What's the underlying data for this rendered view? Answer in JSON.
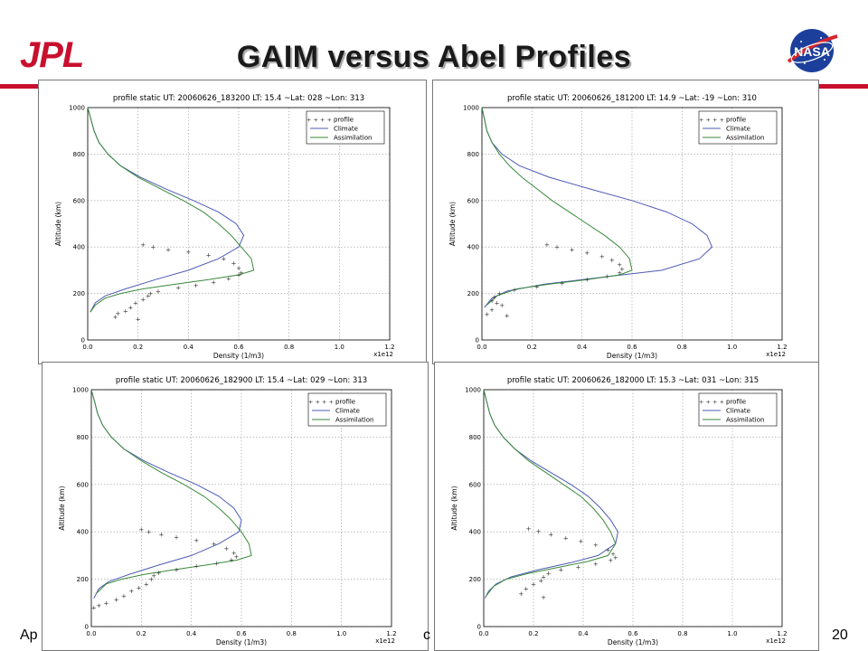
{
  "slide": {
    "title": "GAIM versus Abel Profiles",
    "footer_left": "Ap",
    "footer_mid": "c",
    "slide_number": "20",
    "logo_left_text": "JPL",
    "logo_right_text": "NASA",
    "colors": {
      "brand_red": "#c8102e",
      "climate": "#4d5bb5",
      "assimilation": "#3a8a3a",
      "profile": "#333333"
    }
  },
  "chart_data": [
    {
      "type": "line",
      "title": "profile static UT: 20060626_183200 LT: 15.4 ~Lat: 028 ~Lon: 313",
      "xlabel": "Density (1/m3)",
      "ylabel": "Altitude (km)",
      "x_multiplier": "x1e12",
      "xlim": [
        0,
        1.2
      ],
      "ylim": [
        0,
        1000
      ],
      "xticks": [
        "0.0",
        "0.2",
        "0.4",
        "0.6",
        "0.8",
        "1.0",
        "1.2"
      ],
      "yticks": [
        "0",
        "200",
        "400",
        "600",
        "800",
        "1000"
      ],
      "grid": true,
      "legend_position": "top-right",
      "legend": [
        "profile",
        "Climate",
        "Assimilation"
      ],
      "series": [
        {
          "name": "Climate",
          "kind": "line",
          "x": [
            0.0,
            0.013,
            0.025,
            0.045,
            0.08,
            0.13,
            0.21,
            0.31,
            0.42,
            0.52,
            0.59,
            0.62,
            0.6,
            0.52,
            0.4,
            0.27,
            0.15,
            0.07,
            0.03,
            0.01
          ],
          "y": [
            1000,
            950,
            900,
            850,
            800,
            750,
            700,
            650,
            600,
            550,
            500,
            450,
            400,
            350,
            300,
            260,
            220,
            190,
            160,
            120
          ]
        },
        {
          "name": "Assimilation",
          "kind": "line",
          "x": [
            0.0,
            0.013,
            0.025,
            0.045,
            0.08,
            0.13,
            0.2,
            0.29,
            0.38,
            0.46,
            0.52,
            0.57,
            0.61,
            0.65,
            0.66,
            0.6,
            0.48,
            0.35,
            0.22,
            0.13,
            0.07,
            0.03,
            0.01
          ],
          "y": [
            1000,
            950,
            900,
            850,
            800,
            750,
            700,
            650,
            600,
            550,
            500,
            450,
            400,
            350,
            300,
            280,
            260,
            240,
            220,
            200,
            180,
            150,
            120
          ]
        },
        {
          "name": "profile",
          "kind": "markers",
          "x": [
            0.22,
            0.26,
            0.32,
            0.4,
            0.48,
            0.54,
            0.58,
            0.6,
            0.61,
            0.6,
            0.56,
            0.5,
            0.43,
            0.36,
            0.28,
            0.25,
            0.24,
            0.22,
            0.19,
            0.17,
            0.15,
            0.12,
            0.11,
            0.2
          ],
          "y": [
            410,
            400,
            390,
            380,
            365,
            350,
            330,
            310,
            290,
            280,
            265,
            250,
            235,
            225,
            210,
            200,
            190,
            175,
            160,
            140,
            125,
            115,
            100,
            90
          ]
        }
      ]
    },
    {
      "type": "line",
      "title": "profile static UT: 20060626_181200 LT: 14.9 ~Lat: -19 ~Lon: 310",
      "xlabel": "Density (1/m3)",
      "ylabel": "Altitude (km)",
      "x_multiplier": "x1e12",
      "xlim": [
        0,
        1.2
      ],
      "ylim": [
        0,
        1000
      ],
      "xticks": [
        "0.0",
        "0.2",
        "0.4",
        "0.6",
        "0.8",
        "1.0",
        "1.2"
      ],
      "yticks": [
        "0",
        "200",
        "400",
        "600",
        "800",
        "1000"
      ],
      "grid": true,
      "legend_position": "top-right",
      "legend": [
        "profile",
        "Climate",
        "Assimilation"
      ],
      "series": [
        {
          "name": "Climate",
          "kind": "line",
          "x": [
            0.0,
            0.01,
            0.02,
            0.04,
            0.08,
            0.15,
            0.27,
            0.43,
            0.6,
            0.74,
            0.84,
            0.9,
            0.92,
            0.87,
            0.72,
            0.48,
            0.25,
            0.1,
            0.04,
            0.01
          ],
          "y": [
            1000,
            950,
            900,
            850,
            800,
            750,
            700,
            650,
            600,
            550,
            500,
            450,
            400,
            350,
            300,
            270,
            240,
            210,
            180,
            140
          ]
        },
        {
          "name": "Assimilation",
          "kind": "line",
          "x": [
            0.0,
            0.01,
            0.02,
            0.04,
            0.07,
            0.11,
            0.16,
            0.22,
            0.28,
            0.35,
            0.42,
            0.49,
            0.55,
            0.59,
            0.6,
            0.55,
            0.42,
            0.27,
            0.14,
            0.06,
            0.02
          ],
          "y": [
            1000,
            950,
            900,
            850,
            800,
            750,
            700,
            650,
            600,
            550,
            500,
            450,
            400,
            350,
            300,
            280,
            260,
            240,
            220,
            190,
            150
          ]
        },
        {
          "name": "profile",
          "kind": "markers",
          "x": [
            0.26,
            0.3,
            0.36,
            0.42,
            0.48,
            0.52,
            0.55,
            0.56,
            0.55,
            0.5,
            0.42,
            0.32,
            0.22,
            0.13,
            0.07,
            0.05,
            0.04,
            0.06,
            0.08,
            0.04,
            0.02,
            0.1
          ],
          "y": [
            410,
            400,
            390,
            375,
            360,
            345,
            325,
            305,
            290,
            275,
            260,
            245,
            230,
            215,
            200,
            185,
            170,
            160,
            150,
            130,
            110,
            105
          ]
        }
      ]
    },
    {
      "type": "line",
      "title": "profile static UT: 20060626_182900 LT: 15.4 ~Lat: 029 ~Lon: 313",
      "xlabel": "Density (1/m3)",
      "ylabel": "Altitude (km)",
      "x_multiplier": "x1e12",
      "xlim": [
        0,
        1.2
      ],
      "ylim": [
        0,
        1000
      ],
      "xticks": [
        "0.0",
        "0.2",
        "0.4",
        "0.6",
        "0.8",
        "1.0",
        "1.2"
      ],
      "yticks": [
        "0",
        "200",
        "400",
        "600",
        "800",
        "1000"
      ],
      "grid": true,
      "legend_position": "top-right",
      "legend": [
        "profile",
        "Climate",
        "Assimilation"
      ],
      "series": [
        {
          "name": "Climate",
          "kind": "line",
          "x": [
            0.0,
            0.013,
            0.025,
            0.045,
            0.08,
            0.13,
            0.21,
            0.31,
            0.42,
            0.51,
            0.57,
            0.6,
            0.59,
            0.51,
            0.4,
            0.27,
            0.15,
            0.07,
            0.03,
            0.01
          ],
          "y": [
            1000,
            950,
            900,
            850,
            800,
            750,
            700,
            650,
            600,
            550,
            500,
            450,
            400,
            350,
            300,
            260,
            220,
            190,
            160,
            120
          ]
        },
        {
          "name": "Assimilation",
          "kind": "line",
          "x": [
            0.0,
            0.013,
            0.025,
            0.045,
            0.08,
            0.13,
            0.2,
            0.28,
            0.37,
            0.45,
            0.51,
            0.56,
            0.6,
            0.63,
            0.64,
            0.58,
            0.46,
            0.33,
            0.21,
            0.12,
            0.06,
            0.02
          ],
          "y": [
            1000,
            950,
            900,
            850,
            800,
            750,
            700,
            650,
            600,
            550,
            500,
            450,
            400,
            350,
            300,
            280,
            260,
            240,
            220,
            200,
            180,
            140
          ]
        },
        {
          "name": "profile",
          "kind": "markers",
          "x": [
            0.2,
            0.23,
            0.28,
            0.34,
            0.42,
            0.49,
            0.54,
            0.57,
            0.58,
            0.56,
            0.5,
            0.42,
            0.34,
            0.27,
            0.25,
            0.24,
            0.22,
            0.19,
            0.16,
            0.13,
            0.1,
            0.06,
            0.03,
            0.01
          ],
          "y": [
            410,
            400,
            390,
            378,
            365,
            350,
            330,
            312,
            295,
            282,
            268,
            255,
            240,
            228,
            215,
            200,
            180,
            165,
            150,
            130,
            115,
            100,
            90,
            80
          ]
        }
      ]
    },
    {
      "type": "line",
      "title": "profile static UT: 20060626_182000 LT: 15.3 ~Lat: 031 ~Lon: 315",
      "xlabel": "Density (1/m3)",
      "ylabel": "Altitude (km)",
      "x_multiplier": "x1e12",
      "xlim": [
        0,
        1.2
      ],
      "ylim": [
        0,
        1000
      ],
      "xticks": [
        "0.0",
        "0.2",
        "0.4",
        "0.6",
        "0.8",
        "1.0",
        "1.2"
      ],
      "yticks": [
        "0",
        "200",
        "400",
        "600",
        "800",
        "1000"
      ],
      "grid": true,
      "legend_position": "top-right",
      "legend": [
        "profile",
        "Climate",
        "Assimilation"
      ],
      "series": [
        {
          "name": "Climate",
          "kind": "line",
          "x": [
            0.0,
            0.012,
            0.024,
            0.044,
            0.078,
            0.125,
            0.19,
            0.27,
            0.35,
            0.42,
            0.47,
            0.51,
            0.54,
            0.53,
            0.46,
            0.35,
            0.22,
            0.11,
            0.05,
            0.02,
            0.005
          ],
          "y": [
            1000,
            950,
            900,
            850,
            800,
            750,
            700,
            650,
            600,
            550,
            500,
            450,
            400,
            350,
            300,
            270,
            240,
            210,
            180,
            150,
            120
          ]
        },
        {
          "name": "Assimilation",
          "kind": "line",
          "x": [
            0.0,
            0.012,
            0.024,
            0.044,
            0.078,
            0.125,
            0.18,
            0.25,
            0.32,
            0.39,
            0.44,
            0.48,
            0.51,
            0.53,
            0.5,
            0.42,
            0.3,
            0.18,
            0.09,
            0.04,
            0.01
          ],
          "y": [
            1000,
            950,
            900,
            850,
            800,
            750,
            700,
            650,
            600,
            550,
            500,
            450,
            400,
            350,
            300,
            275,
            250,
            225,
            200,
            170,
            130
          ]
        },
        {
          "name": "profile",
          "kind": "markers",
          "x": [
            0.18,
            0.22,
            0.27,
            0.33,
            0.39,
            0.45,
            0.5,
            0.52,
            0.53,
            0.51,
            0.45,
            0.38,
            0.31,
            0.26,
            0.24,
            0.23,
            0.2,
            0.17,
            0.15,
            0.24
          ],
          "y": [
            415,
            402,
            390,
            375,
            360,
            345,
            325,
            308,
            292,
            280,
            266,
            252,
            240,
            225,
            210,
            195,
            180,
            160,
            140,
            125
          ]
        }
      ]
    }
  ]
}
